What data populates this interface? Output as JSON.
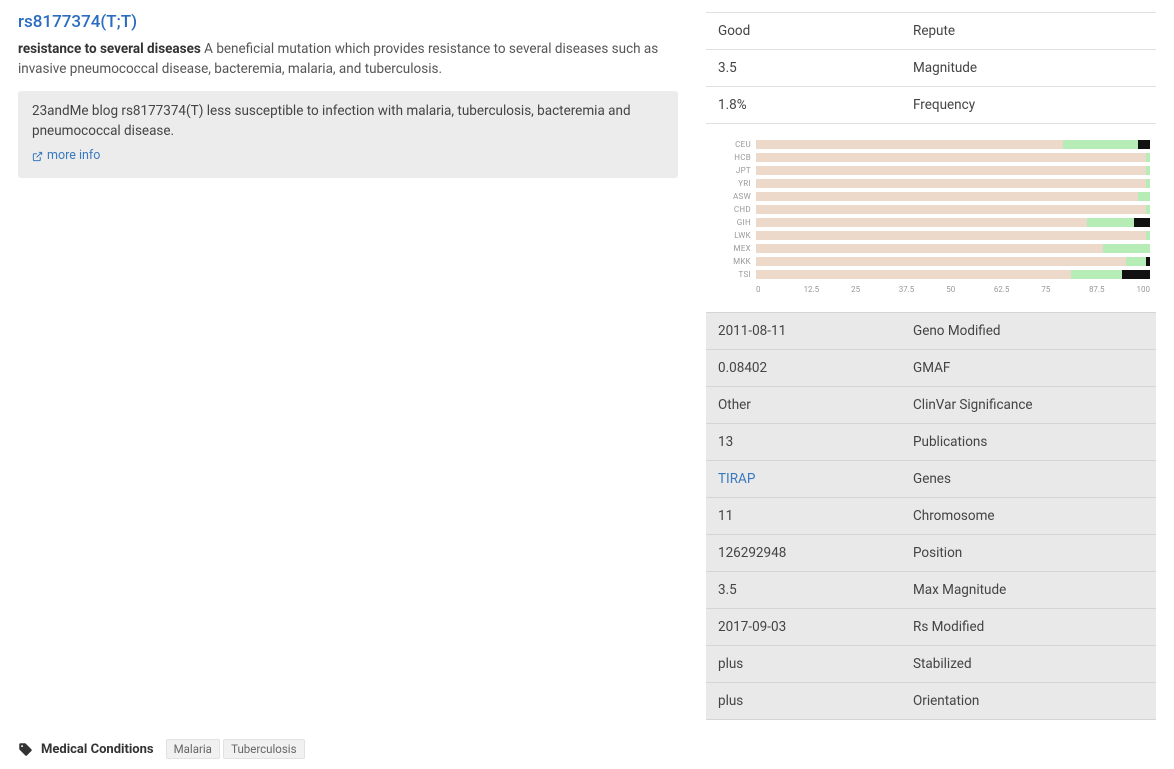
{
  "title": "rs8177374(T;T)",
  "summary_bold": "resistance to several diseases",
  "summary_rest": " A beneficial mutation which provides resistance to several diseases such as invasive pneumococcal disease, bacteremia, malaria, and tuberculosis.",
  "blurb": "23andMe blog rs8177374(T) less susceptible to infection with malaria, tuberculosis, bacteremia and pneumococcal disease.",
  "more_info_label": "more info",
  "top_kv": [
    {
      "value": "Good",
      "label": "Repute"
    },
    {
      "value": "3.5",
      "label": "Magnitude"
    },
    {
      "value": "1.8%",
      "label": "Frequency"
    }
  ],
  "chart": {
    "categories": [
      "CEU",
      "HCB",
      "JPT",
      "YRI",
      "ASW",
      "CHD",
      "GIH",
      "LWK",
      "MEX",
      "MKK",
      "TSI"
    ],
    "seg_a": [
      78,
      99,
      99,
      99,
      97,
      99,
      84,
      99,
      88,
      94,
      80
    ],
    "seg_b": [
      19,
      1,
      1,
      1,
      3,
      1,
      12,
      1,
      12,
      5,
      13
    ],
    "seg_c": [
      3,
      0,
      0,
      0,
      0,
      0,
      4,
      0,
      0,
      1,
      7
    ],
    "xticks": [
      "0",
      "12.5",
      "25",
      "37.5",
      "50",
      "62.5",
      "75",
      "87.5",
      "100"
    ],
    "color_a": "#ecd9ca",
    "color_b": "#b6edb6",
    "color_c": "#111111",
    "label_color": "#999999",
    "bg_color": "#ffffff"
  },
  "bottom_kv": [
    {
      "value": "2011-08-11",
      "label": "Geno Modified",
      "link": false
    },
    {
      "value": "0.08402",
      "label": "GMAF",
      "link": false
    },
    {
      "value": "Other",
      "label": "ClinVar Significance",
      "link": false
    },
    {
      "value": "13",
      "label": "Publications",
      "link": false
    },
    {
      "value": "TIRAP",
      "label": "Genes",
      "link": true
    },
    {
      "value": "11",
      "label": "Chromosome",
      "link": false
    },
    {
      "value": "126292948",
      "label": "Position",
      "link": false
    },
    {
      "value": "3.5",
      "label": "Max Magnitude",
      "link": false
    },
    {
      "value": "2017-09-03",
      "label": "Rs Modified",
      "link": false
    },
    {
      "value": "plus",
      "label": "Stabilized",
      "link": false
    },
    {
      "value": "plus",
      "label": "Orientation",
      "link": false
    }
  ],
  "footer": {
    "section": "Medical Conditions",
    "tags": [
      "Malaria",
      "Tuberculosis"
    ]
  }
}
